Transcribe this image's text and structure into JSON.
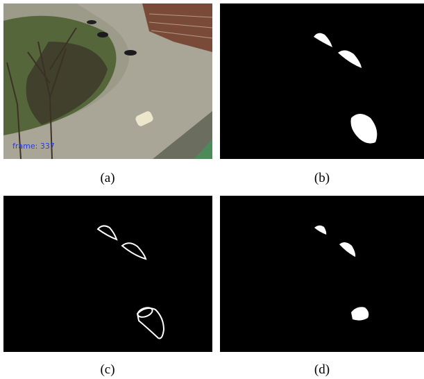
{
  "panels": [
    {
      "label": "(a)",
      "overlay": "frame: 337"
    },
    {
      "label": "(b)"
    },
    {
      "label": "(c)"
    },
    {
      "label": "(d)"
    }
  ]
}
